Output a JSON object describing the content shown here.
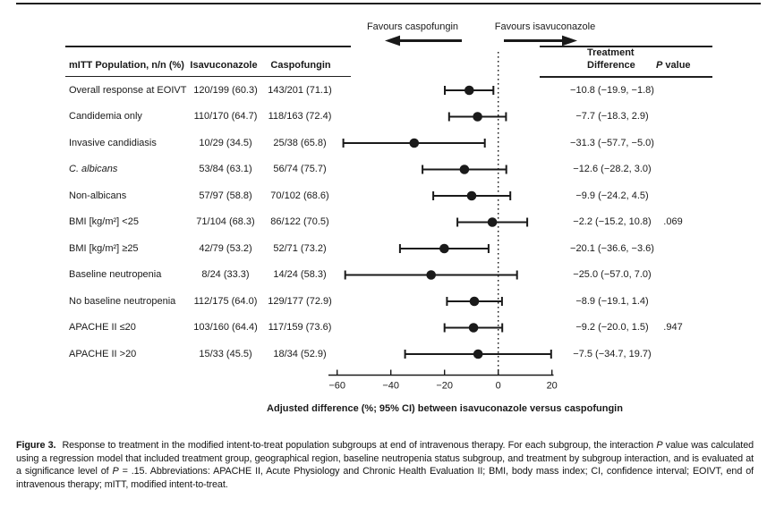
{
  "figure": {
    "favours_left": "Favours caspofungin",
    "favours_right": "Favours isavuconazole",
    "headers": {
      "population": "mITT Population, n/n (%)",
      "isavuconazole": "Isavuconazole",
      "caspofungin": "Caspofungin",
      "treatment_difference_line1": "Treatment",
      "treatment_difference_line2": "Difference",
      "p_value_italic": "P",
      "p_value_rest": " value"
    }
  },
  "chart_data": {
    "type": "forest",
    "title": "",
    "xlabel": "Adjusted difference (%; 95% CI) between isavuconazole versus caspofungin",
    "x_ticks": [
      -60,
      -40,
      -20,
      0,
      20
    ],
    "xlim": [
      -63,
      21
    ],
    "zero_line": 0,
    "grid": false,
    "legend_position": "none",
    "rows": [
      {
        "label": "Overall response at EOIVT",
        "italic": false,
        "isav": "120/199 (60.3)",
        "caspo": "143/201 (71.1)",
        "est": -10.8,
        "lo": -19.9,
        "hi": -1.8,
        "diff": "−10.8 (−19.9, −1.8)",
        "p": ""
      },
      {
        "label": "Candidemia only",
        "italic": false,
        "isav": "110/170 (64.7)",
        "caspo": "118/163 (72.4)",
        "est": -7.7,
        "lo": -18.3,
        "hi": 2.9,
        "diff": "−7.7 (−18.3, 2.9)",
        "p": ""
      },
      {
        "label": "Invasive candidiasis",
        "italic": false,
        "isav": "10/29 (34.5)",
        "caspo": "25/38 (65.8)",
        "est": -31.3,
        "lo": -57.7,
        "hi": -5.0,
        "diff": "−31.3 (−57.7, −5.0)",
        "p": ""
      },
      {
        "label": "C. albicans",
        "italic": true,
        "isav": "53/84 (63.1)",
        "caspo": "56/74 (75.7)",
        "est": -12.6,
        "lo": -28.2,
        "hi": 3.0,
        "diff": "−12.6 (−28.2, 3.0)",
        "p": ""
      },
      {
        "label": "Non-albicans",
        "italic": false,
        "isav": "57/97 (58.8)",
        "caspo": "70/102 (68.6)",
        "est": -9.9,
        "lo": -24.2,
        "hi": 4.5,
        "diff": "−9.9 (−24.2, 4.5)",
        "p": ""
      },
      {
        "label": "BMI [kg/m²] <25",
        "italic": false,
        "isav": "71/104 (68.3)",
        "caspo": "86/122 (70.5)",
        "est": -2.2,
        "lo": -15.2,
        "hi": 10.8,
        "diff": "−2.2 (−15.2, 10.8)",
        "p": ".069"
      },
      {
        "label": "BMI [kg/m²] ≥25",
        "italic": false,
        "isav": "42/79 (53.2)",
        "caspo": "52/71 (73.2)",
        "est": -20.1,
        "lo": -36.6,
        "hi": -3.6,
        "diff": "−20.1 (−36.6, −3.6)",
        "p": ""
      },
      {
        "label": "Baseline neutropenia",
        "italic": false,
        "isav": "8/24 (33.3)",
        "caspo": "14/24 (58.3)",
        "est": -25.0,
        "lo": -57.0,
        "hi": 7.0,
        "diff": "−25.0 (−57.0, 7.0)",
        "p": ""
      },
      {
        "label": "No baseline neutropenia",
        "italic": false,
        "isav": "112/175 (64.0)",
        "caspo": "129/177 (72.9)",
        "est": -8.9,
        "lo": -19.1,
        "hi": 1.4,
        "diff": "−8.9 (−19.1, 1.4)",
        "p": ""
      },
      {
        "label": "APACHE II ≤20",
        "italic": false,
        "isav": "103/160 (64.4)",
        "caspo": "117/159 (73.6)",
        "est": -9.2,
        "lo": -20.0,
        "hi": 1.5,
        "diff": "−9.2 (−20.0, 1.5)",
        "p": ".947"
      },
      {
        "label": "APACHE II >20",
        "italic": false,
        "isav": "15/33 (45.5)",
        "caspo": "18/34 (52.9)",
        "est": -7.5,
        "lo": -34.7,
        "hi": 19.7,
        "diff": "−7.5 (−34.7, 19.7)",
        "p": ""
      }
    ]
  },
  "caption": {
    "segments": [
      {
        "t": "Figure 3.",
        "b": true,
        "gap": true
      },
      {
        "t": "Response to treatment in the modified intent-to-treat population subgroups at end of intravenous therapy. For each subgroup, the interaction "
      },
      {
        "t": "P",
        "i": true
      },
      {
        "t": " value was calculated using a regression model that included treatment group, geographical region, baseline neutropenia status subgroup, and treatment by subgroup interaction, and is evaluated at a significance level of "
      },
      {
        "t": "P",
        "i": true
      },
      {
        "t": " = .15. Abbreviations: APACHE II, Acute Physiology and Chronic Health Evaluation II; BMI, body mass index; CI, confidence interval; EOIVT, end of intravenous therapy; mITT, modified intent-to-treat."
      }
    ]
  }
}
